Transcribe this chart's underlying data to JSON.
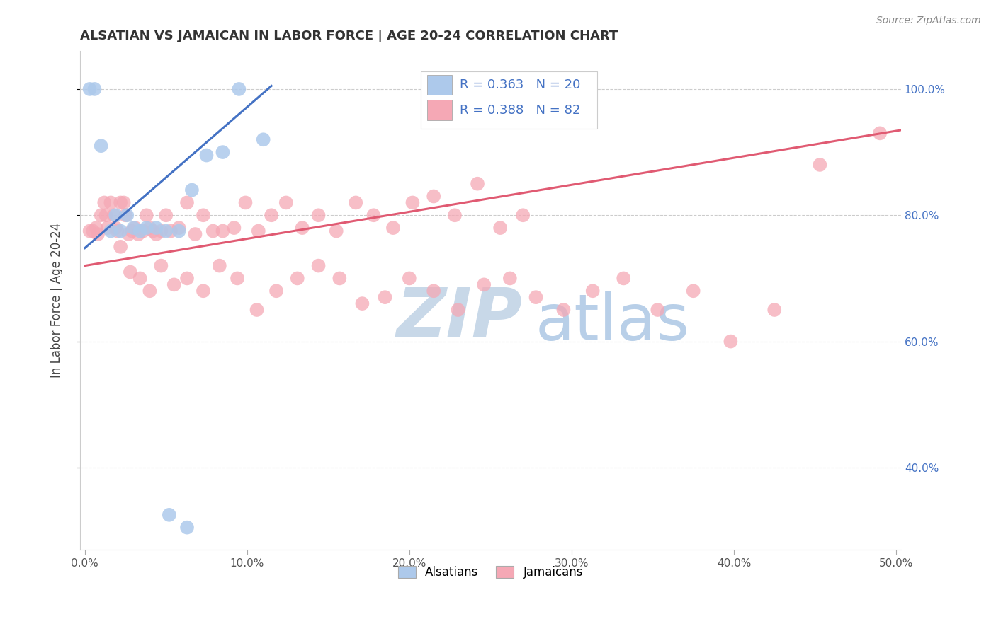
{
  "title": "ALSATIAN VS JAMAICAN IN LABOR FORCE | AGE 20-24 CORRELATION CHART",
  "source": "Source: ZipAtlas.com",
  "ylabel": "In Labor Force | Age 20-24",
  "xlim": [
    -0.003,
    0.503
  ],
  "ylim": [
    0.27,
    1.06
  ],
  "yticks": [
    0.4,
    0.6,
    0.8,
    1.0
  ],
  "ytick_labels": [
    "40.0%",
    "60.0%",
    "80.0%",
    "100.0%"
  ],
  "xticks": [
    0.0,
    0.1,
    0.2,
    0.3,
    0.4,
    0.5
  ],
  "xtick_labels": [
    "0.0%",
    "10.0%",
    "20.0%",
    "30.0%",
    "40.0%",
    "50.0%"
  ],
  "alsatian_R": 0.363,
  "alsatian_N": 20,
  "jamaican_R": 0.388,
  "jamaican_N": 82,
  "alsatian_color": "#adc9eb",
  "jamaican_color": "#f5a8b5",
  "alsatian_line_color": "#4472c4",
  "jamaican_line_color": "#e05a72",
  "legend_label_alsatians": "Alsatians",
  "legend_label_jamaicans": "Jamaicans",
  "watermark_zip": "ZIP",
  "watermark_atlas": "atlas",
  "watermark_color_zip": "#c8d8e8",
  "watermark_color_atlas": "#b8cfe8",
  "als_x": [
    0.003,
    0.006,
    0.01,
    0.016,
    0.019,
    0.022,
    0.026,
    0.03,
    0.034,
    0.038,
    0.044,
    0.05,
    0.058,
    0.066,
    0.075,
    0.085,
    0.095,
    0.11,
    0.052,
    0.063
  ],
  "als_y": [
    1.0,
    1.0,
    0.91,
    0.775,
    0.8,
    0.775,
    0.8,
    0.78,
    0.775,
    0.78,
    0.78,
    0.775,
    0.775,
    0.84,
    0.895,
    0.9,
    1.0,
    0.92,
    0.325,
    0.305
  ],
  "jam_x": [
    0.003,
    0.005,
    0.007,
    0.008,
    0.01,
    0.012,
    0.013,
    0.014,
    0.016,
    0.018,
    0.019,
    0.02,
    0.022,
    0.024,
    0.025,
    0.027,
    0.029,
    0.031,
    0.033,
    0.036,
    0.038,
    0.04,
    0.042,
    0.044,
    0.047,
    0.05,
    0.053,
    0.058,
    0.063,
    0.068,
    0.073,
    0.079,
    0.085,
    0.092,
    0.099,
    0.107,
    0.115,
    0.124,
    0.134,
    0.144,
    0.155,
    0.167,
    0.178,
    0.19,
    0.202,
    0.215,
    0.228,
    0.242,
    0.256,
    0.27,
    0.022,
    0.028,
    0.034,
    0.04,
    0.047,
    0.055,
    0.063,
    0.073,
    0.083,
    0.094,
    0.106,
    0.118,
    0.131,
    0.144,
    0.157,
    0.171,
    0.185,
    0.2,
    0.215,
    0.23,
    0.246,
    0.262,
    0.278,
    0.295,
    0.313,
    0.332,
    0.353,
    0.375,
    0.398,
    0.425,
    0.453,
    0.49
  ],
  "jam_y": [
    0.775,
    0.775,
    0.78,
    0.77,
    0.8,
    0.82,
    0.8,
    0.78,
    0.82,
    0.8,
    0.78,
    0.775,
    0.82,
    0.82,
    0.8,
    0.77,
    0.775,
    0.78,
    0.77,
    0.775,
    0.8,
    0.78,
    0.775,
    0.77,
    0.775,
    0.8,
    0.775,
    0.78,
    0.82,
    0.77,
    0.8,
    0.775,
    0.775,
    0.78,
    0.82,
    0.775,
    0.8,
    0.82,
    0.78,
    0.8,
    0.775,
    0.82,
    0.8,
    0.78,
    0.82,
    0.83,
    0.8,
    0.85,
    0.78,
    0.8,
    0.75,
    0.71,
    0.7,
    0.68,
    0.72,
    0.69,
    0.7,
    0.68,
    0.72,
    0.7,
    0.65,
    0.68,
    0.7,
    0.72,
    0.7,
    0.66,
    0.67,
    0.7,
    0.68,
    0.65,
    0.69,
    0.7,
    0.67,
    0.65,
    0.68,
    0.7,
    0.65,
    0.68,
    0.6,
    0.65,
    0.88,
    0.93
  ],
  "als_trend_x": [
    0.0,
    0.115
  ],
  "als_trend_y": [
    0.748,
    1.005
  ],
  "jam_trend_x": [
    0.0,
    0.503
  ],
  "jam_trend_y": [
    0.72,
    0.935
  ]
}
